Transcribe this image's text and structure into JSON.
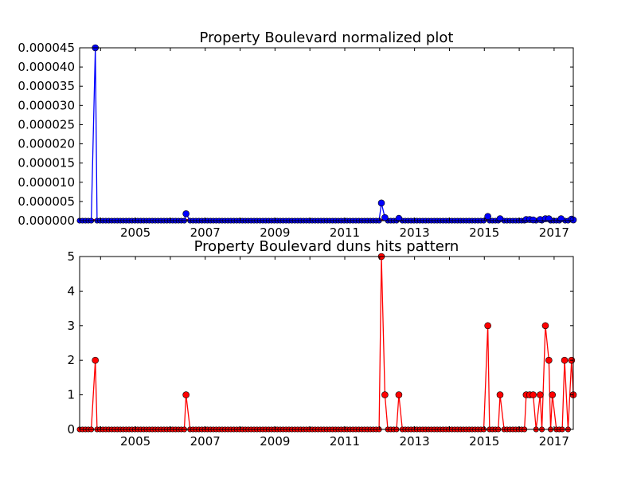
{
  "chart_data": [
    {
      "type": "line",
      "title": "Property Boulevard normalized plot",
      "xlabel": "",
      "ylabel": "",
      "xlim": [
        2003.4,
        2017.55
      ],
      "ylim": [
        0,
        4.5e-05
      ],
      "x_ticks": [
        "2005",
        "2007",
        "2009",
        "2011",
        "2013",
        "2015",
        "2017"
      ],
      "y_ticks": [
        "0.000000",
        "0.000005",
        "0.000010",
        "0.000015",
        "0.000020",
        "0.000025",
        "0.000030",
        "0.000035",
        "0.000040",
        "0.000045"
      ],
      "grid": false,
      "colors": {
        "line": "#0000ff",
        "marker": "#0000ff",
        "baseline": "#ff0000"
      },
      "series": [
        {
          "points": [
            [
              2003.85,
              4.5e-05
            ],
            [
              2006.45,
              1.8e-06
            ],
            [
              2012.05,
              4.6e-06
            ],
            [
              2012.15,
              8e-07
            ],
            [
              2012.55,
              6e-07
            ],
            [
              2015.1,
              1.1e-06
            ],
            [
              2015.45,
              5e-07
            ],
            [
              2016.2,
              3e-07
            ],
            [
              2016.3,
              3e-07
            ],
            [
              2016.4,
              2e-07
            ],
            [
              2016.6,
              3e-07
            ],
            [
              2016.75,
              5e-07
            ],
            [
              2016.85,
              5e-07
            ],
            [
              2017.2,
              5e-07
            ],
            [
              2017.5,
              4e-07
            ],
            [
              2017.55,
              2e-07
            ]
          ]
        }
      ]
    },
    {
      "type": "line",
      "title": "Property Boulevard duns hits pattern",
      "xlabel": "",
      "ylabel": "",
      "xlim": [
        2003.4,
        2017.55
      ],
      "ylim": [
        0,
        5
      ],
      "x_ticks": [
        "2005",
        "2007",
        "2009",
        "2011",
        "2013",
        "2015",
        "2017"
      ],
      "y_ticks": [
        "0",
        "1",
        "2",
        "3",
        "4",
        "5"
      ],
      "grid": false,
      "colors": {
        "line": "#ff0000",
        "marker": "#ff0000"
      },
      "series": [
        {
          "points": [
            [
              2003.85,
              2
            ],
            [
              2006.45,
              1
            ],
            [
              2012.05,
              5
            ],
            [
              2012.15,
              1
            ],
            [
              2012.55,
              1
            ],
            [
              2015.1,
              3
            ],
            [
              2015.45,
              1
            ],
            [
              2016.2,
              1
            ],
            [
              2016.3,
              1
            ],
            [
              2016.4,
              1
            ],
            [
              2016.6,
              1
            ],
            [
              2016.75,
              3
            ],
            [
              2016.85,
              2
            ],
            [
              2016.95,
              1
            ],
            [
              2017.3,
              2
            ],
            [
              2017.5,
              2
            ],
            [
              2017.55,
              1
            ]
          ]
        }
      ]
    }
  ]
}
